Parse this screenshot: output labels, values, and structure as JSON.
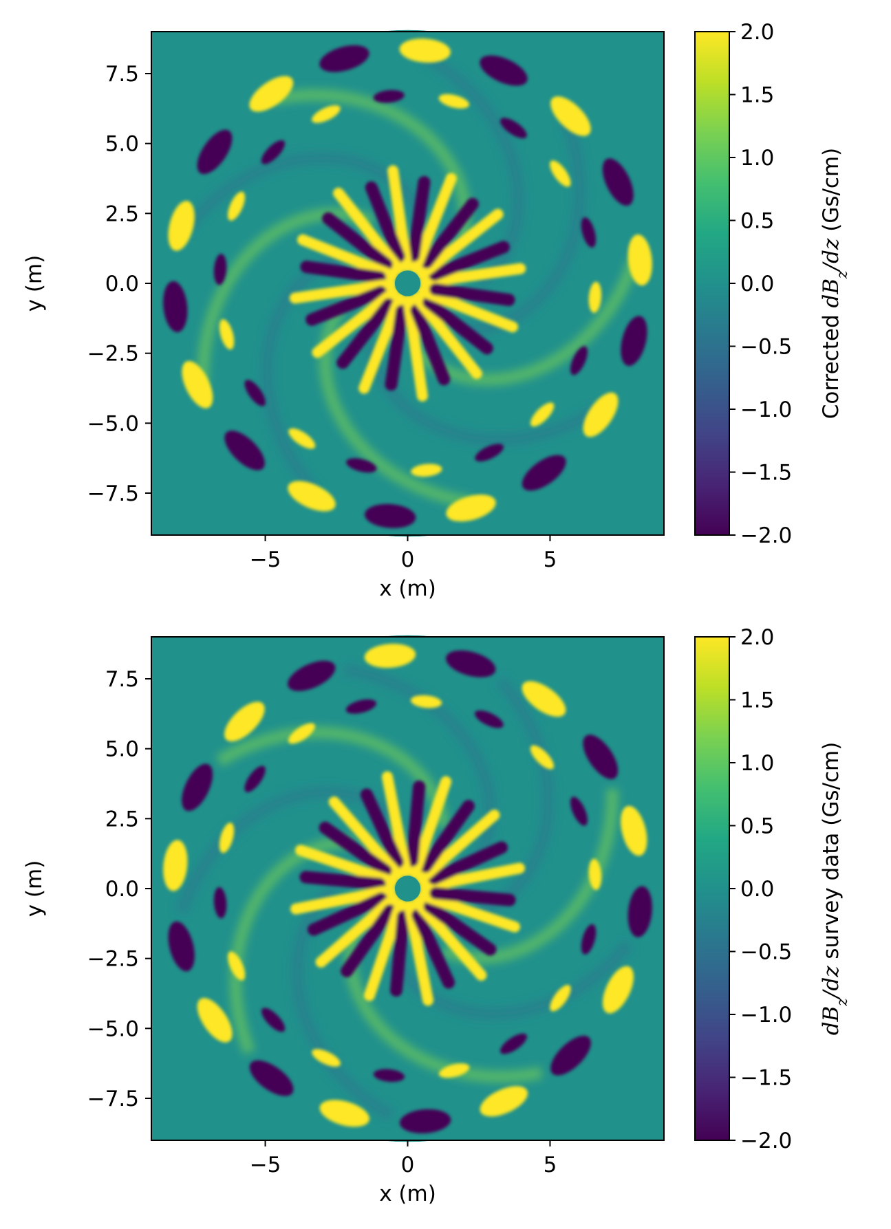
{
  "chart_data": [
    {
      "type": "heatmap",
      "title": "",
      "xlabel": "x (m)",
      "ylabel": "y (m)",
      "xlim": [
        -9,
        9
      ],
      "ylim": [
        -9,
        9
      ],
      "xticks": [
        -5,
        0,
        5
      ],
      "xtick_labels": [
        "−5",
        "0",
        "5"
      ],
      "yticks": [
        7.5,
        5.0,
        2.5,
        0.0,
        -2.5,
        -5.0,
        -7.5
      ],
      "ytick_labels": [
        "7.5",
        "5.0",
        "2.5",
        "0.0",
        "−2.5",
        "−5.0",
        "−7.5"
      ],
      "mask_radius_m": 8.9,
      "colormap": "viridis",
      "colorbar": {
        "label_prefix": "Corrected ",
        "label_symbol_d1": "dB",
        "label_subscript": "z",
        "label_symbol_d2": "/dz",
        "label_suffix": " (Gs/cm)",
        "vmin": -2.0,
        "vmax": 2.0,
        "ticks": [
          2.0,
          1.5,
          1.0,
          0.5,
          0.0,
          -0.5,
          -1.0,
          -1.5,
          -2.0
        ],
        "tick_labels": [
          "2.0",
          "1.5",
          "1.0",
          "0.5",
          "0.0",
          "−0.5",
          "−1.0",
          "−1.5",
          "−2.0"
        ]
      },
      "field_features": {
        "inner_spokes": 12,
        "inner_spoke_radius_m": [
          0.6,
          4.2
        ],
        "outer_ring_lobes": 18,
        "outer_ring_radius_m": 8.2
      }
    },
    {
      "type": "heatmap",
      "title": "",
      "xlabel": "x (m)",
      "ylabel": "y (m)",
      "xlim": [
        -9,
        9
      ],
      "ylim": [
        -9,
        9
      ],
      "xticks": [
        -5,
        0,
        5
      ],
      "xtick_labels": [
        "−5",
        "0",
        "5"
      ],
      "yticks": [
        7.5,
        5.0,
        2.5,
        0.0,
        -2.5,
        -5.0,
        -7.5
      ],
      "ytick_labels": [
        "7.5",
        "5.0",
        "2.5",
        "0.0",
        "−2.5",
        "−5.0",
        "−7.5"
      ],
      "mask_radius_m": 8.9,
      "colormap": "viridis",
      "colorbar": {
        "label_prefix": "",
        "label_symbol_d1": "dB",
        "label_subscript": "z",
        "label_symbol_d2": "/dz",
        "label_suffix": " survey data (Gs/cm)",
        "vmin": -2.0,
        "vmax": 2.0,
        "ticks": [
          2.0,
          1.5,
          1.0,
          0.5,
          0.0,
          -0.5,
          -1.0,
          -1.5,
          -2.0
        ],
        "tick_labels": [
          "2.0",
          "1.5",
          "1.0",
          "0.5",
          "0.0",
          "−0.5",
          "−1.0",
          "−1.5",
          "−2.0"
        ]
      },
      "field_features": {
        "inner_spokes": 12,
        "inner_spoke_radius_m": [
          0.6,
          4.2
        ],
        "outer_ring_lobes": 18,
        "outer_ring_radius_m": 8.2
      }
    }
  ]
}
